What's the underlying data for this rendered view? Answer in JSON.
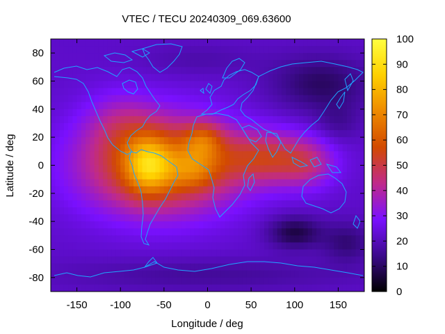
{
  "chart_data": {
    "type": "heatmap",
    "title": "VTEC / TECU 20240309_069.63600",
    "xlabel": "Longitude / deg",
    "ylabel": "Latitude / deg",
    "xlim": [
      -180,
      180
    ],
    "ylim": [
      -90,
      90
    ],
    "xticks": [
      -150,
      -100,
      -50,
      0,
      50,
      100,
      150
    ],
    "yticks": [
      -80,
      -60,
      -40,
      -20,
      0,
      20,
      40,
      60,
      80
    ],
    "colorbar": {
      "min": 0,
      "max": 100,
      "ticks": [
        0,
        10,
        20,
        30,
        40,
        50,
        60,
        70,
        80,
        90,
        100
      ],
      "palette": [
        "#000000",
        "#3c0a8c",
        "#7a10ff",
        "#c02a8a",
        "#d24a00",
        "#ee8a00",
        "#ffd000",
        "#ffff40"
      ]
    },
    "background_level": 22,
    "features": [
      {
        "name": "main-anomaly-lobe",
        "lon": -55,
        "lat": 0,
        "sigma_lon": 62,
        "sigma_lat": 24,
        "amplitude": 42
      },
      {
        "name": "south-america-peak",
        "lon": -68,
        "lat": 0,
        "sigma_lon": 18,
        "sigma_lat": 14,
        "amplitude": 28
      },
      {
        "name": "africa-north-peak",
        "lon": -5,
        "lat": 18,
        "sigma_lon": 16,
        "sigma_lat": 9,
        "amplitude": 20
      },
      {
        "name": "atlantic-south-peak",
        "lon": -15,
        "lat": -3,
        "sigma_lon": 20,
        "sigma_lat": 10,
        "amplitude": 14
      },
      {
        "name": "indian-ocean-tail",
        "lon": 70,
        "lat": 5,
        "sigma_lon": 40,
        "sigma_lat": 13,
        "amplitude": 26
      },
      {
        "name": "asia-southeast-tail",
        "lon": 115,
        "lat": 0,
        "sigma_lon": 22,
        "sigma_lat": 12,
        "amplitude": 12
      },
      {
        "name": "north-america-mid",
        "lon": -100,
        "lat": 30,
        "sigma_lon": 28,
        "sigma_lat": 16,
        "amplitude": 10
      },
      {
        "name": "siberia-trough",
        "lon": 130,
        "lat": 58,
        "sigma_lon": 40,
        "sigma_lat": 14,
        "amplitude": -12
      },
      {
        "name": "south-indian-trough",
        "lon": 100,
        "lat": -48,
        "sigma_lon": 22,
        "sigma_lat": 8,
        "amplitude": -15
      },
      {
        "name": "south-pacific-trough",
        "lon": 160,
        "lat": -55,
        "sigma_lon": 20,
        "sigma_lat": 10,
        "amplitude": -10
      },
      {
        "name": "west-pacific-trough",
        "lon": 150,
        "lat": 30,
        "sigma_lon": 18,
        "sigma_lat": 10,
        "amplitude": -6
      },
      {
        "name": "antarctic-trough",
        "lon": 0,
        "lat": -78,
        "sigma_lon": 120,
        "sigma_lat": 8,
        "amplitude": -6
      },
      {
        "name": "arctic-atlantic-trough",
        "lon": -10,
        "lat": 75,
        "sigma_lon": 50,
        "sigma_lat": 8,
        "amplitude": -4
      }
    ],
    "colors": {
      "coastline": "#1ea7ff",
      "axes": "#000000"
    }
  }
}
